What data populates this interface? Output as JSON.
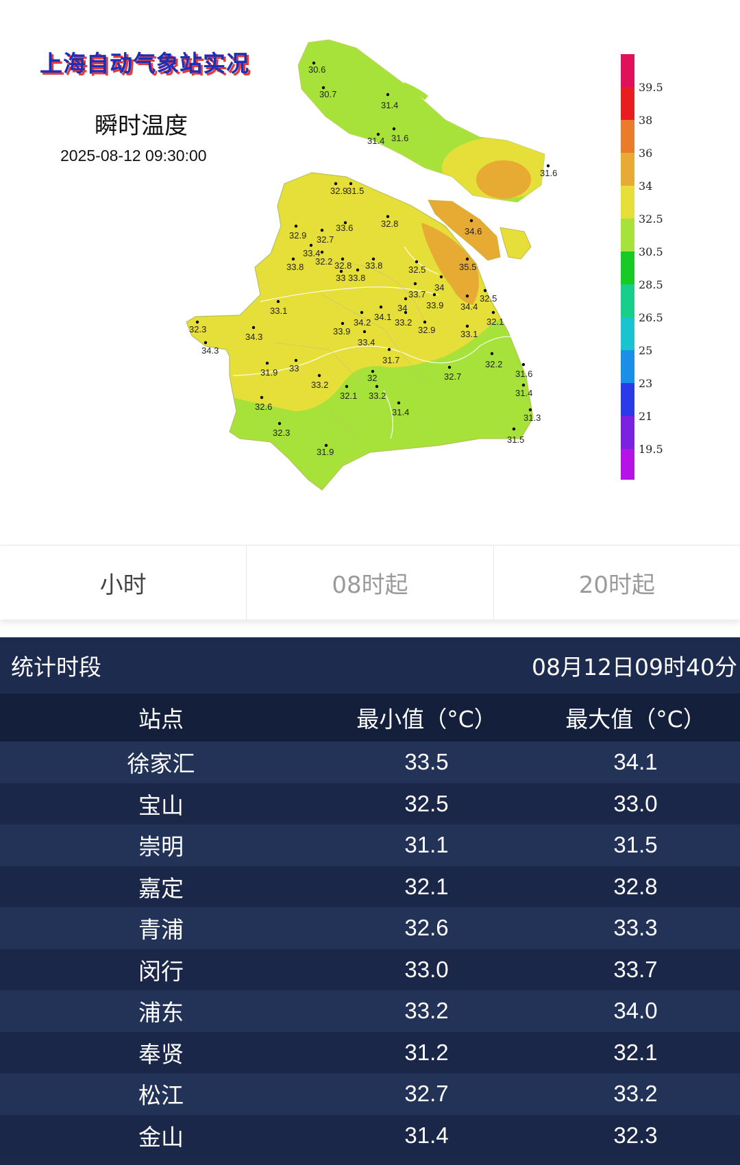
{
  "map": {
    "title": "上海自动气象站实况",
    "subtitle": "瞬时温度",
    "timestamp": "2025-08-12 09:30:00",
    "legend": [
      {
        "label": "39.5",
        "color": "#e0105a"
      },
      {
        "label": "38",
        "color": "#e81e1e"
      },
      {
        "label": "36",
        "color": "#ea7b2a"
      },
      {
        "label": "34",
        "color": "#e7ab33"
      },
      {
        "label": "32.5",
        "color": "#e6df3a"
      },
      {
        "label": "30.5",
        "color": "#a6e23a"
      },
      {
        "label": "28.5",
        "color": "#16cc24"
      },
      {
        "label": "26.5",
        "color": "#17cf8a"
      },
      {
        "label": "25",
        "color": "#19c3d0"
      },
      {
        "label": "23",
        "color": "#1a8fe8"
      },
      {
        "label": "21",
        "color": "#2a3ae8"
      },
      {
        "label": "19.5",
        "color": "#7a22e0"
      },
      {
        "label": "",
        "color": "#b512e6"
      }
    ],
    "stations": [
      {
        "v": "30.6"
      },
      {
        "v": "30.7"
      },
      {
        "v": "31.4"
      },
      {
        "v": "31.4"
      },
      {
        "v": "31.6"
      },
      {
        "v": "31.6"
      },
      {
        "v": "32.9"
      },
      {
        "v": "31.5"
      },
      {
        "v": "34.6"
      },
      {
        "v": "32.8"
      },
      {
        "v": "33.6"
      },
      {
        "v": "32.9"
      },
      {
        "v": "32.7"
      },
      {
        "v": "33.4"
      },
      {
        "v": "32.2"
      },
      {
        "v": "32.8"
      },
      {
        "v": "33.8"
      },
      {
        "v": "33.8"
      },
      {
        "v": "33"
      },
      {
        "v": "33.8"
      },
      {
        "v": "32.5"
      },
      {
        "v": "35.5"
      },
      {
        "v": "34"
      },
      {
        "v": "33.7"
      },
      {
        "v": "33.9"
      },
      {
        "v": "34.4"
      },
      {
        "v": "32.5"
      },
      {
        "v": "33.1"
      },
      {
        "v": "34"
      },
      {
        "v": "34.1"
      },
      {
        "v": "34.2"
      },
      {
        "v": "33.9"
      },
      {
        "v": "33.2"
      },
      {
        "v": "32.9"
      },
      {
        "v": "33.1"
      },
      {
        "v": "32.1"
      },
      {
        "v": "32.3"
      },
      {
        "v": "34.3"
      },
      {
        "v": "34.3"
      },
      {
        "v": "33.4"
      },
      {
        "v": "31.7"
      },
      {
        "v": "32.2"
      },
      {
        "v": "31.9"
      },
      {
        "v": "33"
      },
      {
        "v": "33.2"
      },
      {
        "v": "32"
      },
      {
        "v": "32.7"
      },
      {
        "v": "31.6"
      },
      {
        "v": "32.1"
      },
      {
        "v": "33.2"
      },
      {
        "v": "31.4"
      },
      {
        "v": "32.6"
      },
      {
        "v": "31.4"
      },
      {
        "v": "31.3"
      },
      {
        "v": "32.3"
      },
      {
        "v": "31.5"
      },
      {
        "v": "31.9"
      }
    ]
  },
  "tabs": [
    {
      "label": "小时",
      "active": true
    },
    {
      "label": "08时起",
      "active": false
    },
    {
      "label": "20时起",
      "active": false
    }
  ],
  "stats": {
    "period_label": "统计时段",
    "period_value": "08月12日09时40分",
    "columns": [
      "站点",
      "最小值（°C）",
      "最大值（°C）"
    ],
    "rows": [
      {
        "station": "徐家汇",
        "min": "33.5",
        "max": "34.1"
      },
      {
        "station": "宝山",
        "min": "32.5",
        "max": "33.0"
      },
      {
        "station": "崇明",
        "min": "31.1",
        "max": "31.5"
      },
      {
        "station": "嘉定",
        "min": "32.1",
        "max": "32.8"
      },
      {
        "station": "青浦",
        "min": "32.6",
        "max": "33.3"
      },
      {
        "station": "闵行",
        "min": "33.0",
        "max": "33.7"
      },
      {
        "station": "浦东",
        "min": "33.2",
        "max": "34.0"
      },
      {
        "station": "奉贤",
        "min": "31.2",
        "max": "32.1"
      },
      {
        "station": "松江",
        "min": "32.7",
        "max": "33.2"
      },
      {
        "station": "金山",
        "min": "31.4",
        "max": "32.3"
      }
    ]
  }
}
